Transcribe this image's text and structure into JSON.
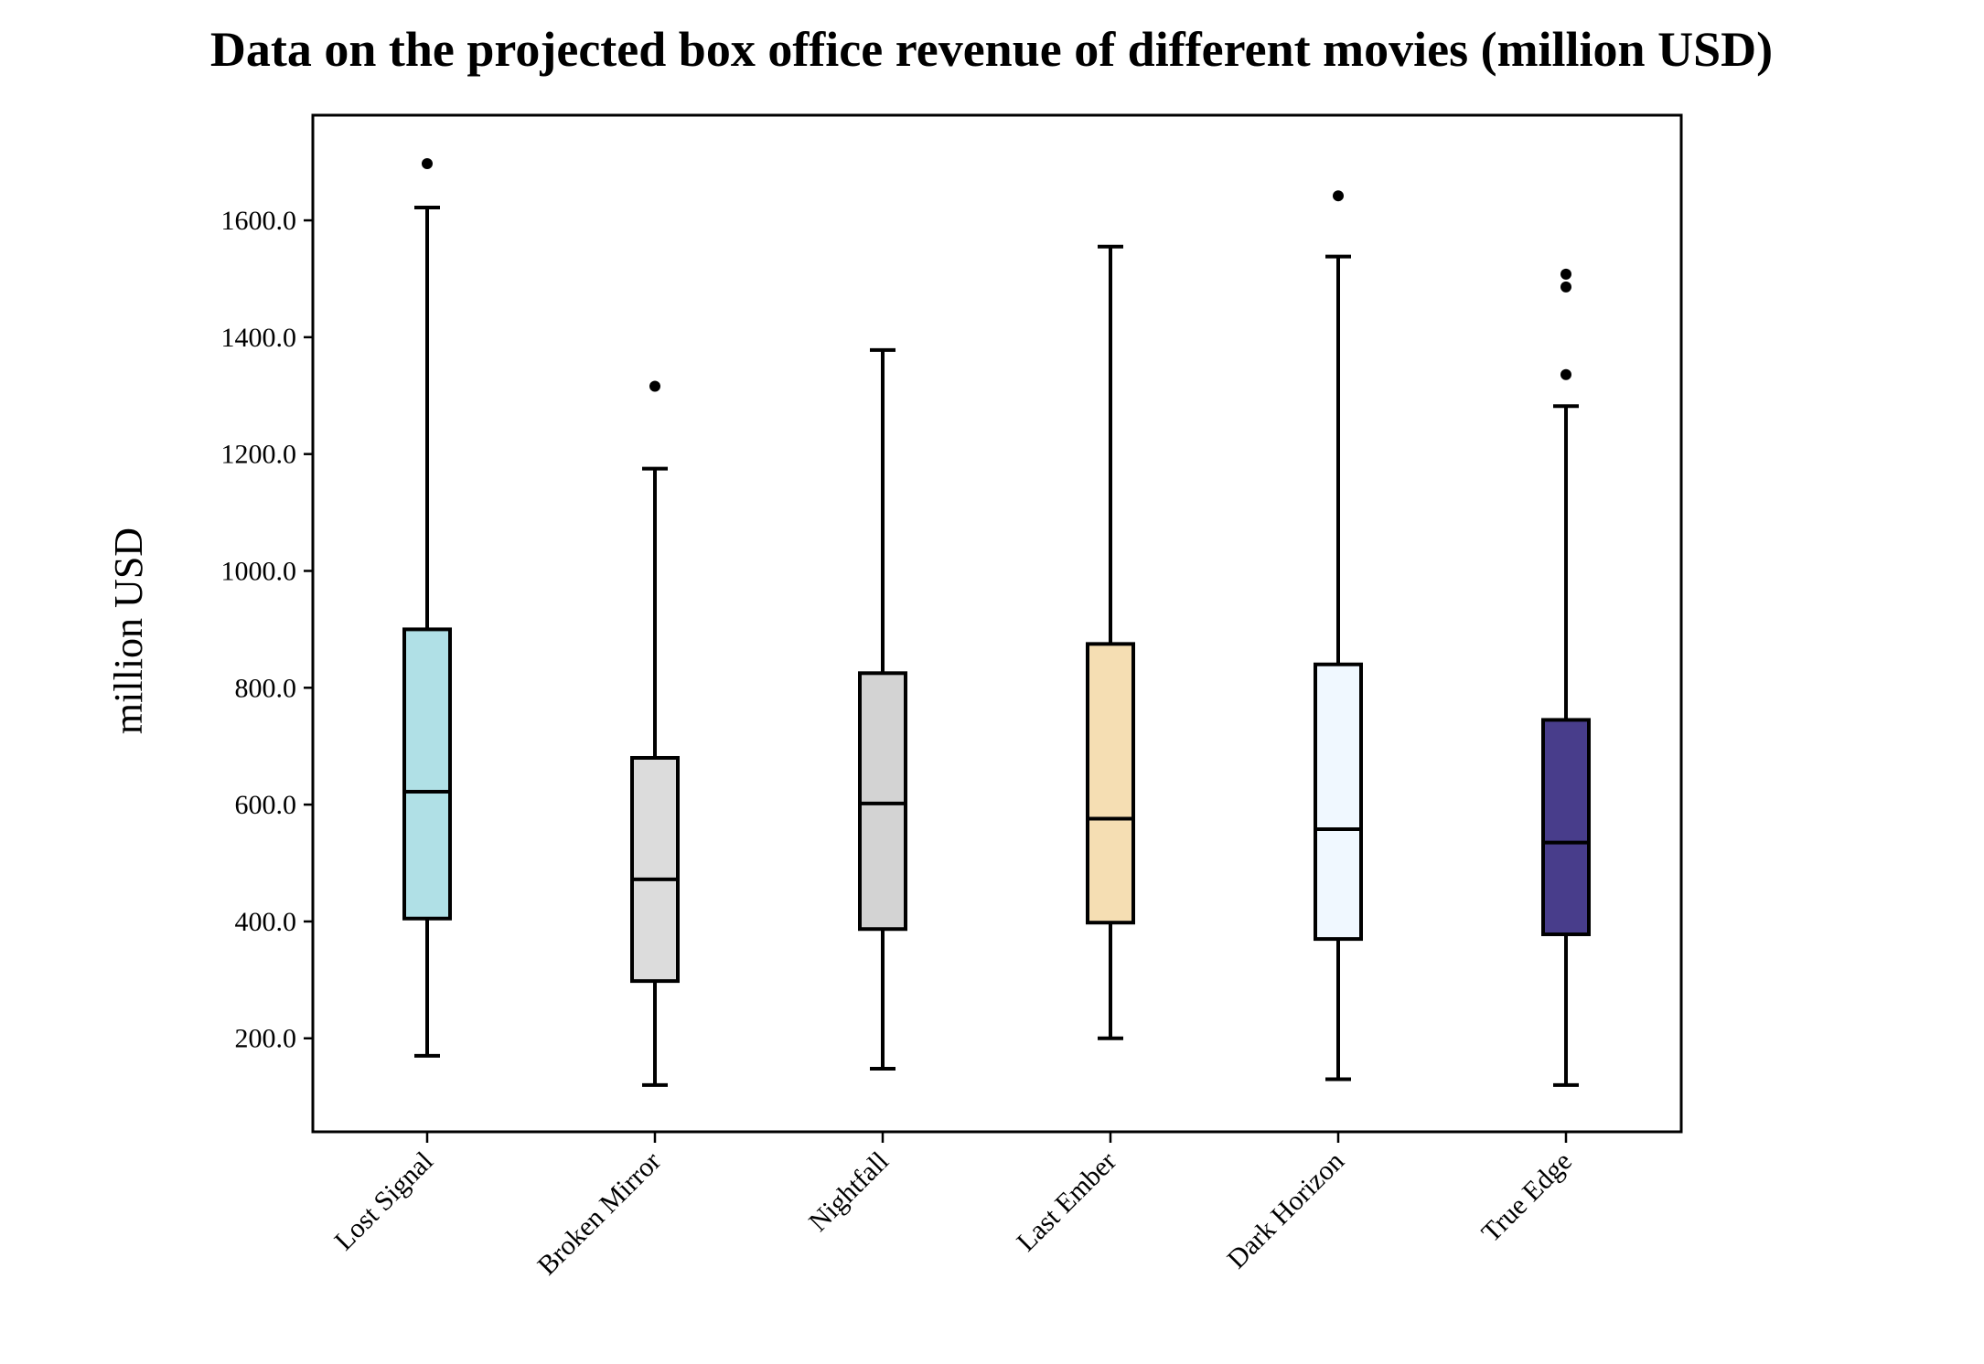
{
  "chart_data": {
    "type": "box",
    "title": "Data on the projected box office revenue of different movies (million USD)",
    "xlabel": "",
    "ylabel": "million USD",
    "ylim": [
      40,
      1780
    ],
    "yticks": [
      200,
      400,
      600,
      800,
      1000,
      1200,
      1400,
      1600
    ],
    "ytick_labels": [
      "200.0",
      "400.0",
      "600.0",
      "800.0",
      "1000.0",
      "1200.0",
      "1400.0",
      "1600.0"
    ],
    "grid": false,
    "legend": "none",
    "categories": [
      "Lost Signal",
      "Broken Mirror",
      "Nightfall",
      "Last Ember",
      "Dark Horizon",
      "True Edge"
    ],
    "boxes": [
      {
        "category": "Lost Signal",
        "whisker_low": 170,
        "q1": 405,
        "median": 622,
        "q3": 900,
        "whisker_high": 1622,
        "outliers": [
          1697
        ],
        "color": "#b0e0e6"
      },
      {
        "category": "Broken Mirror",
        "whisker_low": 120,
        "q1": 298,
        "median": 472,
        "q3": 680,
        "whisker_high": 1175,
        "outliers": [
          1316
        ],
        "color": "#dcdcdc"
      },
      {
        "category": "Nightfall",
        "whisker_low": 148,
        "q1": 387,
        "median": 602,
        "q3": 825,
        "whisker_high": 1378,
        "outliers": [],
        "color": "#d3d3d3"
      },
      {
        "category": "Last Ember",
        "whisker_low": 200,
        "q1": 398,
        "median": 576,
        "q3": 875,
        "whisker_high": 1555,
        "outliers": [],
        "color": "#f5deb3"
      },
      {
        "category": "Dark Horizon",
        "whisker_low": 130,
        "q1": 370,
        "median": 558,
        "q3": 840,
        "whisker_high": 1538,
        "outliers": [
          1642
        ],
        "color": "#f0f8ff"
      },
      {
        "category": "True Edge",
        "whisker_low": 120,
        "q1": 378,
        "median": 535,
        "q3": 745,
        "whisker_high": 1282,
        "outliers": [
          1336,
          1486,
          1508
        ],
        "color": "#483d8b"
      }
    ]
  }
}
